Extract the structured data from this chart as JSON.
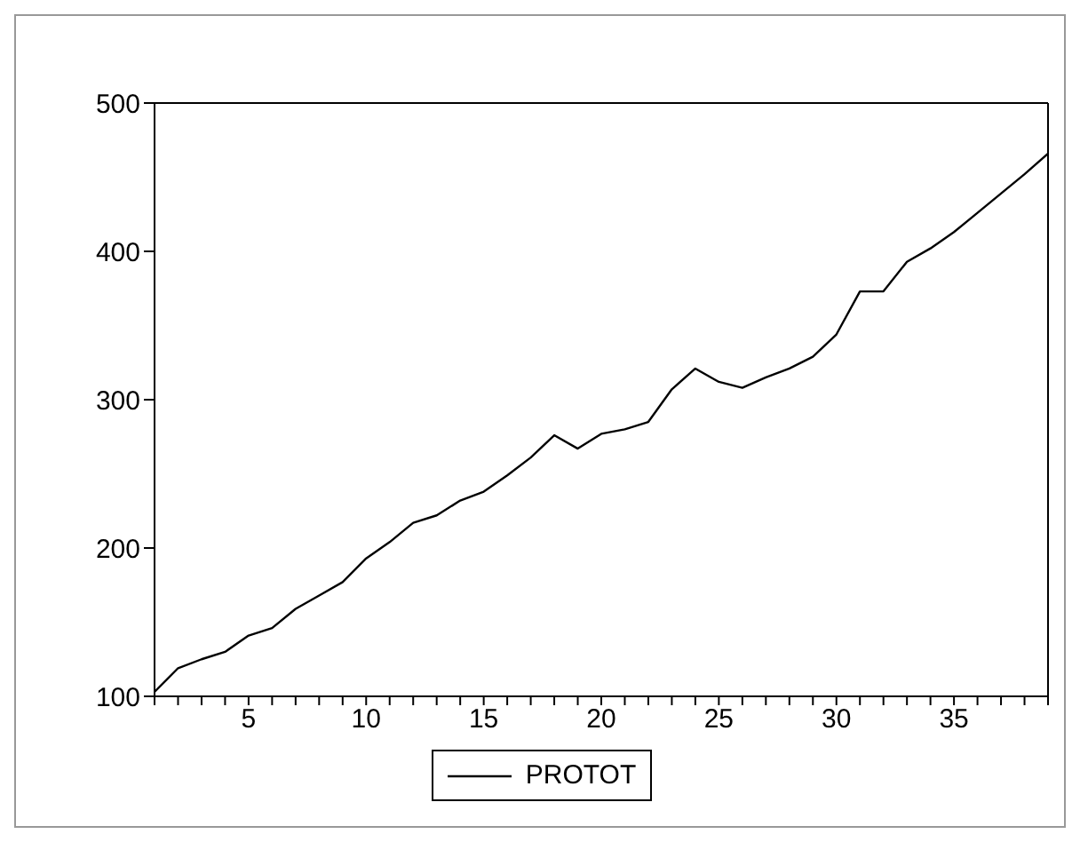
{
  "chart_data": {
    "type": "line",
    "x": [
      1,
      2,
      3,
      4,
      5,
      6,
      7,
      8,
      9,
      10,
      11,
      12,
      13,
      14,
      15,
      16,
      17,
      18,
      19,
      20,
      21,
      22,
      23,
      24,
      25,
      26,
      27,
      28,
      29,
      30,
      31,
      32,
      33,
      34,
      35,
      36,
      37,
      38,
      39
    ],
    "series": [
      {
        "name": "PROTOT",
        "color": "#000000",
        "values": [
          103,
          119,
          125,
          130,
          141,
          146,
          159,
          168,
          177,
          193,
          204,
          217,
          222,
          232,
          238,
          249,
          261,
          276,
          267,
          277,
          280,
          285,
          307,
          321,
          312,
          308,
          315,
          321,
          329,
          344,
          373,
          373,
          393,
          402,
          413,
          426,
          439,
          452,
          466
        ]
      }
    ],
    "xlim": [
      1,
      39
    ],
    "xticks": [
      {
        "value": 1,
        "label": null
      },
      {
        "value": 2,
        "label": null
      },
      {
        "value": 3,
        "label": null
      },
      {
        "value": 4,
        "label": null
      },
      5,
      {
        "value": 6,
        "label": null
      },
      {
        "value": 7,
        "label": null
      },
      {
        "value": 8,
        "label": null
      },
      {
        "value": 9,
        "label": null
      },
      10,
      {
        "value": 11,
        "label": null
      },
      {
        "value": 12,
        "label": null
      },
      {
        "value": 13,
        "label": null
      },
      {
        "value": 14,
        "label": null
      },
      15,
      {
        "value": 16,
        "label": null
      },
      {
        "value": 17,
        "label": null
      },
      {
        "value": 18,
        "label": null
      },
      {
        "value": 19,
        "label": null
      },
      20,
      {
        "value": 21,
        "label": null
      },
      {
        "value": 22,
        "label": null
      },
      {
        "value": 23,
        "label": null
      },
      {
        "value": 24,
        "label": null
      },
      25,
      {
        "value": 26,
        "label": null
      },
      {
        "value": 27,
        "label": null
      },
      {
        "value": 28,
        "label": null
      },
      {
        "value": 29,
        "label": null
      },
      30,
      {
        "value": 31,
        "label": null
      },
      {
        "value": 32,
        "label": null
      },
      {
        "value": 33,
        "label": null
      },
      {
        "value": 34,
        "label": null
      },
      35,
      {
        "value": 36,
        "label": null
      },
      {
        "value": 37,
        "label": null
      },
      {
        "value": 38,
        "label": null
      },
      {
        "value": 39,
        "label": null
      }
    ],
    "ylim": [
      100,
      500
    ],
    "yticks": [
      100,
      200,
      300,
      400,
      500
    ],
    "grid": false,
    "legend": "bottom",
    "marker": "none",
    "line_style": "solid"
  }
}
